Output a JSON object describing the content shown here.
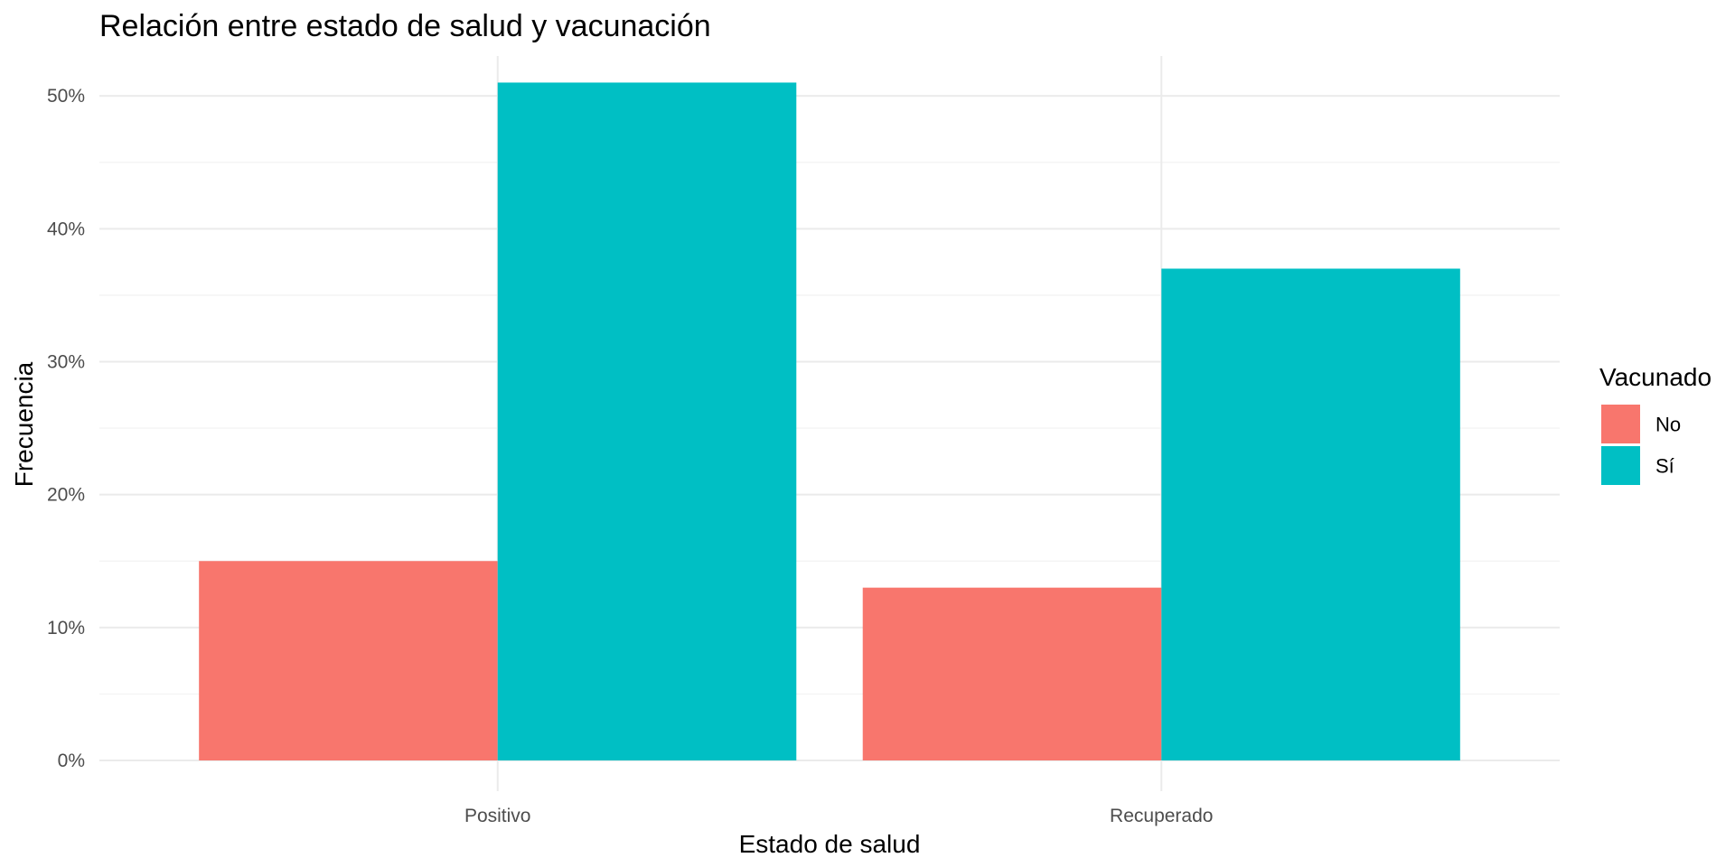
{
  "chart_data": {
    "type": "bar",
    "title": "Relación entre estado de salud y vacunación",
    "xlabel": "Estado de salud",
    "ylabel": "Frecuencia",
    "categories": [
      "Positivo",
      "Recuperado"
    ],
    "series": [
      {
        "name": "No",
        "color": "#F8766D",
        "values": [
          15,
          13
        ]
      },
      {
        "name": "Sí",
        "color": "#00BFC4",
        "values": [
          51,
          37
        ]
      }
    ],
    "ylim": [
      0,
      53
    ],
    "yticks": [
      0,
      10,
      20,
      30,
      40,
      50
    ],
    "ytick_labels": [
      "0%",
      "10%",
      "20%",
      "30%",
      "40%",
      "50%"
    ],
    "grid": true,
    "legend": {
      "title": "Vacunado",
      "position": "right"
    }
  }
}
